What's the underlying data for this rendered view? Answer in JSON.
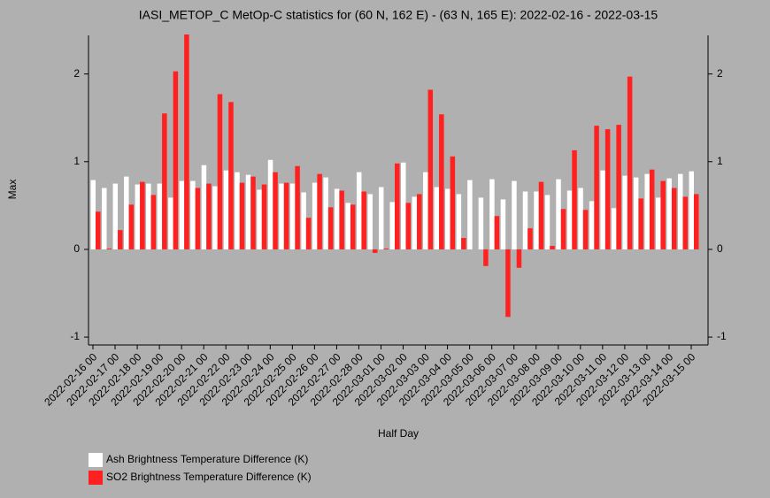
{
  "chart_data": {
    "type": "bar",
    "title": "IASI_METOP_C MetOp-C statistics for (60 N, 162 E) - (63 N, 165 E): 2022-02-16 - 2022-03-15",
    "xlabel": "Half Day",
    "ylabel": "Max",
    "categories": [
      "2022-02-16 00",
      null,
      "2022-02-17 00",
      null,
      "2022-02-18 00",
      null,
      "2022-02-19 00",
      null,
      "2022-02-20 00",
      null,
      "2022-02-21 00",
      null,
      "2022-02-22 00",
      null,
      "2022-02-23 00",
      null,
      "2022-02-24 00",
      null,
      "2022-02-25 00",
      null,
      "2022-02-26 00",
      null,
      "2022-02-27 00",
      null,
      "2022-02-28 00",
      null,
      "2022-03-01 00",
      null,
      "2022-03-02 00",
      null,
      "2022-03-03 00",
      null,
      "2022-03-04 00",
      null,
      "2022-03-05 00",
      null,
      "2022-03-06 00",
      null,
      "2022-03-07 00",
      null,
      "2022-03-08 00",
      null,
      "2022-03-09 00",
      null,
      "2022-03-10 00",
      null,
      "2022-03-11 00",
      null,
      "2022-03-12 00",
      null,
      "2022-03-13 00",
      null,
      "2022-03-14 00",
      null,
      "2022-03-15 00"
    ],
    "series": [
      {
        "name": "Ash Brightness Temperature Difference (K)",
        "color": "#ffffff",
        "values": [
          0.79,
          0.7,
          0.75,
          0.83,
          0.74,
          0.75,
          0.75,
          0.59,
          0.78,
          0.78,
          0.96,
          0.72,
          0.9,
          0.88,
          0.85,
          0.68,
          1.02,
          0.75,
          0.75,
          0.65,
          0.76,
          0.82,
          0.69,
          0.53,
          0.88,
          0.63,
          0.71,
          0.54,
          0.99,
          0.6,
          0.88,
          0.71,
          0.69,
          0.63,
          0.79,
          0.59,
          0.8,
          0.57,
          0.78,
          0.66,
          0.66,
          0.62,
          0.8,
          0.67,
          0.7,
          0.55,
          0.9,
          0.47,
          0.84,
          0.82,
          0.86,
          0.59,
          0.81,
          0.86,
          0.89
        ]
      },
      {
        "name": "SO2 Brightness Temperature Difference (K)",
        "color": "#ff2020",
        "values": [
          0.43,
          0.01,
          0.22,
          0.51,
          0.77,
          0.62,
          1.55,
          2.03,
          2.45,
          0.7,
          0.75,
          1.77,
          1.68,
          0.76,
          0.83,
          0.74,
          0.88,
          0.76,
          0.95,
          0.36,
          0.86,
          0.48,
          0.67,
          0.51,
          0.66,
          -0.04,
          0.01,
          0.98,
          0.53,
          0.63,
          1.82,
          1.54,
          1.06,
          0.13,
          0.0,
          -0.19,
          0.38,
          -0.77,
          -0.21,
          0.24,
          0.77,
          0.04,
          0.46,
          1.13,
          0.45,
          1.41,
          1.37,
          1.42,
          1.97,
          0.58,
          0.91,
          0.78,
          0.7,
          0.6,
          0.63
        ]
      }
    ],
    "ylim": [
      -1.09,
      2.44
    ],
    "yticks": [
      -1,
      0,
      1,
      2
    ]
  }
}
